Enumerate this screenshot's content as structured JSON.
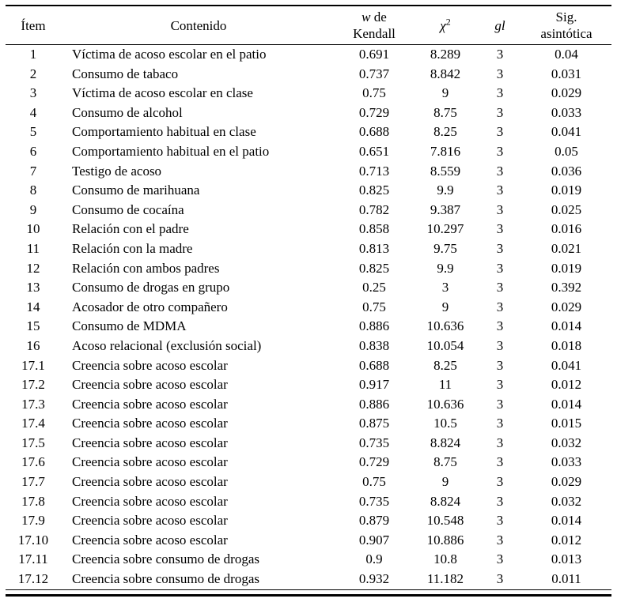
{
  "header": {
    "item": "Ítem",
    "contenido": "Contenido",
    "kendall_w": "w",
    "kendall_de": " de",
    "kendall_line2": "Kendall",
    "chi": "χ",
    "chi_sup": "2",
    "gl": "gl",
    "sig_line1": "Sig.",
    "sig_line2": "asintótica"
  },
  "chart_data": {
    "type": "table",
    "columns": [
      "Ítem",
      "Contenido",
      "w de Kendall",
      "χ2",
      "gl",
      "Sig. asintótica"
    ]
  },
  "rows": [
    [
      "1",
      "Víctima de acoso escolar en el patio",
      "0.691",
      "8.289",
      "3",
      "0.04"
    ],
    [
      "2",
      "Consumo de tabaco",
      "0.737",
      "8.842",
      "3",
      "0.031"
    ],
    [
      "3",
      "Víctima de acoso escolar en clase",
      "0.75",
      "9",
      "3",
      "0.029"
    ],
    [
      "4",
      "Consumo de alcohol",
      "0.729",
      "8.75",
      "3",
      "0.033"
    ],
    [
      "5",
      "Comportamiento habitual en clase",
      "0.688",
      "8.25",
      "3",
      "0.041"
    ],
    [
      "6",
      "Comportamiento habitual en el patio",
      "0.651",
      "7.816",
      "3",
      "0.05"
    ],
    [
      "7",
      "Testigo de acoso",
      "0.713",
      "8.559",
      "3",
      "0.036"
    ],
    [
      "8",
      "Consumo de marihuana",
      "0.825",
      "9.9",
      "3",
      "0.019"
    ],
    [
      "9",
      "Consumo de cocaína",
      "0.782",
      "9.387",
      "3",
      "0.025"
    ],
    [
      "10",
      "Relación con el padre",
      "0.858",
      "10.297",
      "3",
      "0.016"
    ],
    [
      "11",
      "Relación con la madre",
      "0.813",
      "9.75",
      "3",
      "0.021"
    ],
    [
      "12",
      "Relación con ambos padres",
      "0.825",
      "9.9",
      "3",
      "0.019"
    ],
    [
      "13",
      "Consumo de drogas en grupo",
      "0.25",
      "3",
      "3",
      "0.392"
    ],
    [
      "14",
      "Acosador de otro compañero",
      "0.75",
      "9",
      "3",
      "0.029"
    ],
    [
      "15",
      "Consumo de MDMA",
      "0.886",
      "10.636",
      "3",
      "0.014"
    ],
    [
      "16",
      "Acoso relacional (exclusión social)",
      "0.838",
      "10.054",
      "3",
      "0.018"
    ],
    [
      "17.1",
      "Creencia sobre acoso escolar",
      "0.688",
      "8.25",
      "3",
      "0.041"
    ],
    [
      "17.2",
      "Creencia sobre acoso escolar",
      "0.917",
      "11",
      "3",
      "0.012"
    ],
    [
      "17.3",
      "Creencia sobre acoso escolar",
      "0.886",
      "10.636",
      "3",
      "0.014"
    ],
    [
      "17.4",
      "Creencia sobre acoso escolar",
      "0.875",
      "10.5",
      "3",
      "0.015"
    ],
    [
      "17.5",
      "Creencia sobre acoso escolar",
      "0.735",
      "8.824",
      "3",
      "0.032"
    ],
    [
      "17.6",
      "Creencia sobre acoso escolar",
      "0.729",
      "8.75",
      "3",
      "0.033"
    ],
    [
      "17.7",
      "Creencia sobre acoso escolar",
      "0.75",
      "9",
      "3",
      "0.029"
    ],
    [
      "17.8",
      "Creencia sobre acoso escolar",
      "0.735",
      "8.824",
      "3",
      "0.032"
    ],
    [
      "17.9",
      "Creencia sobre acoso escolar",
      "0.879",
      "10.548",
      "3",
      "0.014"
    ],
    [
      "17.10",
      "Creencia sobre acoso escolar",
      "0.907",
      "10.886",
      "3",
      "0.012"
    ],
    [
      "17.11",
      "Creencia sobre consumo de drogas",
      "0.9",
      "10.8",
      "3",
      "0.013"
    ],
    [
      "17.12",
      "Creencia sobre consumo de drogas",
      "0.932",
      "11.182",
      "3",
      "0.011"
    ]
  ]
}
